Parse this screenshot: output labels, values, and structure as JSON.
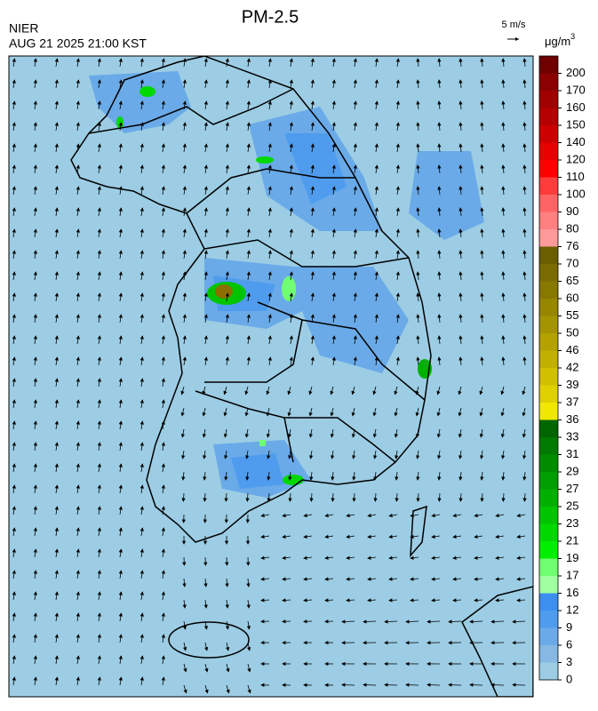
{
  "header": {
    "title": "PM-2.5",
    "agency": "NIER",
    "timestamp": "AUG 21 2025 21:00 KST"
  },
  "wind_key": {
    "label": "5 m/s"
  },
  "legend": {
    "unit": {
      "base": "μg/m",
      "sup": "3"
    },
    "levels": [
      0,
      3,
      6,
      9,
      12,
      16,
      17,
      19,
      21,
      23,
      25,
      27,
      29,
      31,
      33,
      36,
      37,
      39,
      42,
      46,
      50,
      55,
      60,
      65,
      70,
      76,
      80,
      90,
      100,
      110,
      120,
      140,
      150,
      160,
      170,
      200
    ],
    "colors": [
      "#9ccde4",
      "#85b8e2",
      "#6aaae8",
      "#4f9cee",
      "#3d8fef",
      "#a0ffa0",
      "#70ff70",
      "#00ee00",
      "#00d800",
      "#00c400",
      "#00b000",
      "#009e00",
      "#008c00",
      "#007a00",
      "#006600",
      "#f0e800",
      "#dfd000",
      "#d0c000",
      "#c2b000",
      "#b3a200",
      "#a49400",
      "#968600",
      "#877800",
      "#7a6c00",
      "#6b5e00",
      "#ff9a9a",
      "#ff8080",
      "#ff6464",
      "#ff3c3c",
      "#ff0000",
      "#e60000",
      "#cc0000",
      "#b40000",
      "#a00000",
      "#8b0000",
      "#6e0000"
    ]
  }
}
